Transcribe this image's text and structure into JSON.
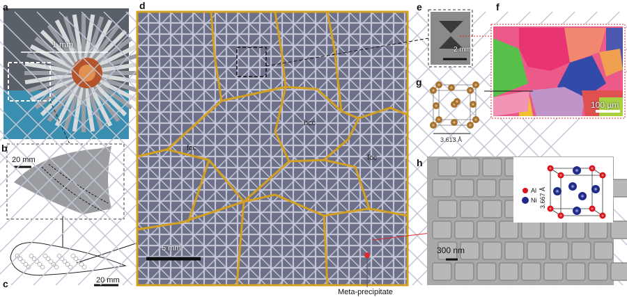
{
  "panels": {
    "a": {
      "label": "a",
      "scale": "1 mm"
    },
    "b": {
      "label": "b",
      "scale": "20 mm"
    },
    "c": {
      "label": "c",
      "scale": "20 mm"
    },
    "d": {
      "label": "d",
      "grain_left": "fcc",
      "grain_center": "bcc",
      "grain_right": "fcc",
      "scale": "5 mm",
      "annotation": "Meta-precipitate"
    },
    "e": {
      "label": "e",
      "scale": "2 mm"
    },
    "f": {
      "label": "f",
      "scale": "100 µm"
    },
    "g": {
      "label": "g",
      "lattice_constant": "3.613 Å"
    },
    "h": {
      "label": "h",
      "scale": "300 nm",
      "legend_al": "Al",
      "legend_ni": "Ni",
      "lattice_constant": "3.667 Å"
    }
  },
  "colors": {
    "boundary": "#d4a020",
    "strut": "#c4c6d8",
    "al": "#d8141c",
    "ni": "#1e2a8a",
    "cu": "#a8702a",
    "arrow_red": "#e0282c"
  }
}
